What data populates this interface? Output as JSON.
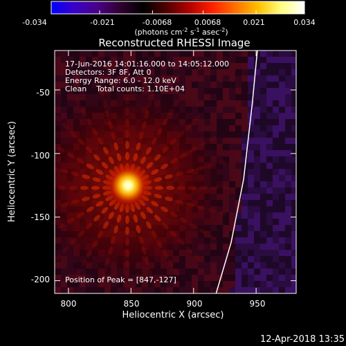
{
  "colorbar": {
    "ticks": [
      "-0.034",
      "-0.021",
      "-0.0068",
      "0.0068",
      "0.021",
      "0.034"
    ],
    "tick_values": [
      -0.034,
      -0.021,
      -0.0068,
      0.0068,
      0.021,
      0.034
    ],
    "units_prefix": "(photons cm",
    "units_exp1": "-2",
    "units_mid1": " s",
    "units_exp2": "-1",
    "units_mid2": " asec",
    "units_exp3": "-2",
    "units_suffix": ")",
    "colormap": [
      "#0000ff",
      "#3a00c8",
      "#4a0088",
      "#300030",
      "#000000",
      "#500000",
      "#b00000",
      "#ff2000",
      "#ff7000",
      "#ffc000",
      "#ffff80",
      "#ffffff"
    ]
  },
  "chart_data": {
    "type": "heatmap",
    "title": "Reconstructed RHESSI Image",
    "xlabel": "Heliocentric X (arcsec)",
    "ylabel": "Heliocentric Y (arcsec)",
    "xlim": [
      789,
      982
    ],
    "ylim": [
      -210,
      -19
    ],
    "x_ticks": [
      800,
      850,
      900,
      950
    ],
    "y_ticks": [
      -50,
      -100,
      -150,
      -200
    ],
    "annotations": [
      "17-Jun-2016 14:01:16.000 to 14:05:12.000",
      "Detectors: 3F 8F, Att 0",
      "Energy Range: 6.0 - 12.0 keV",
      "Clean    Total counts: 1.10E+04"
    ],
    "peak_label": "Position of Peak = [847,-127]",
    "peak": [
      847,
      -127
    ],
    "limb": [
      [
        918,
        -210
      ],
      [
        930,
        -170
      ],
      [
        940,
        -120
      ],
      [
        947,
        -60
      ],
      [
        951,
        -19
      ]
    ]
  },
  "timestamp": "12-Apr-2018 13:35"
}
